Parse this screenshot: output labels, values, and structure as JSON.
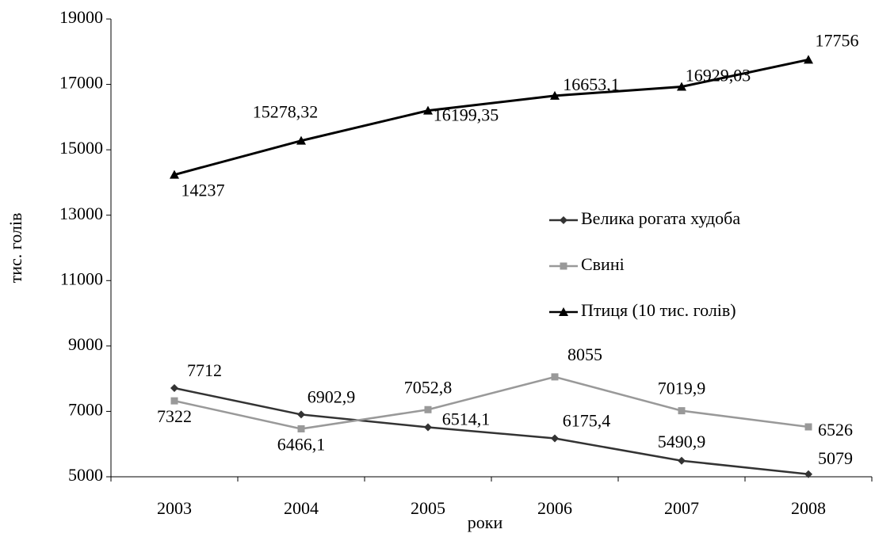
{
  "chart_data": {
    "type": "line",
    "x_label": "роки",
    "y_label": "тис. голів",
    "categories": [
      "2003",
      "2004",
      "2005",
      "2006",
      "2007",
      "2008"
    ],
    "series": [
      {
        "name": "Велика рогата худоба",
        "color": "#333333",
        "marker": "diamond",
        "values": [
          7712,
          6902.9,
          6514.1,
          6175.4,
          5490.9,
          5079
        ],
        "value_labels": [
          "7712",
          "6902,9",
          "6514,1",
          "6175,4",
          "5490,9",
          "5079"
        ]
      },
      {
        "name": "Свині",
        "color": "#999999",
        "marker": "square",
        "values": [
          7322,
          6466.1,
          7052.8,
          8055,
          7019.9,
          6526
        ],
        "value_labels": [
          "7322",
          "6466,1",
          "7052,8",
          "8055",
          "7019,9",
          "6526"
        ]
      },
      {
        "name": "Птиця (10 тис. голів)",
        "color": "#000000",
        "marker": "triangle",
        "values": [
          14237,
          15278.32,
          16199.35,
          16653.1,
          16929.03,
          17756
        ],
        "value_labels": [
          "14237",
          "15278,32",
          "16199,35",
          "16653,1",
          "16929,03",
          "17756"
        ]
      }
    ],
    "ylim": [
      5000,
      19000
    ],
    "yticks": [
      5000,
      7000,
      9000,
      11000,
      13000,
      15000,
      17000,
      19000
    ],
    "grid": false
  }
}
